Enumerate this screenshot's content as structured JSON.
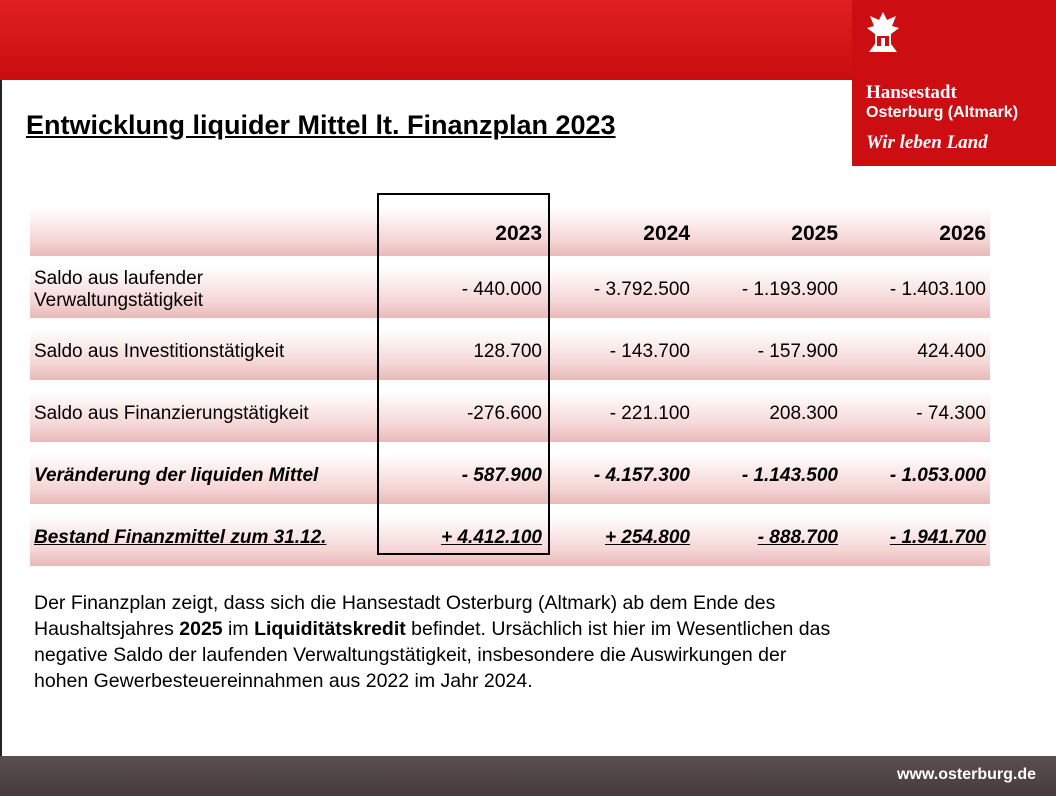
{
  "header": {
    "title": "Entwicklung liquider Mittel lt. Finanzplan 2023",
    "logo": {
      "line1": "Hansestadt",
      "line2": "Osterburg (Altmark)",
      "slogan": "Wir leben Land"
    }
  },
  "table": {
    "columns": [
      "2023",
      "2024",
      "2025",
      "2026"
    ],
    "rows": [
      [
        "Saldo aus laufender Verwaltungstätigkeit",
        "- 440.000",
        "- 3.792.500",
        "- 1.193.900",
        "- 1.403.100"
      ],
      [
        "Saldo aus Investitionstätigkeit",
        "128.700",
        "- 143.700",
        "- 157.900",
        "424.400"
      ],
      [
        "Saldo aus Finanzierungstätigkeit",
        "-276.600",
        "- 221.100",
        "208.300",
        "- 74.300"
      ],
      [
        "Veränderung der liquiden Mittel",
        "- 587.900",
        "- 4.157.300",
        "- 1.143.500",
        "- 1.053.000"
      ],
      [
        "Bestand Finanzmittel zum 31.12.",
        "+ 4.412.100",
        "+ 254.800",
        "- 888.700",
        "- 1.941.700"
      ]
    ]
  },
  "paragraph": [
    "Der Finanzplan zeigt, dass sich die Hansestadt Osterburg (Altmark) ab dem Ende des Haushaltsjahres ",
    "2025",
    " im ",
    "Liquiditätskredit",
    " befindet. Ursächlich ist hier im Wesentlichen das negative Saldo der laufenden Verwaltungstätigkeit, insbesondere die Auswirkungen der hohen Gewerbesteuereinnahmen aus 2022 im Jahr 2024."
  ],
  "footer": {
    "url": "www.osterburg.de"
  }
}
